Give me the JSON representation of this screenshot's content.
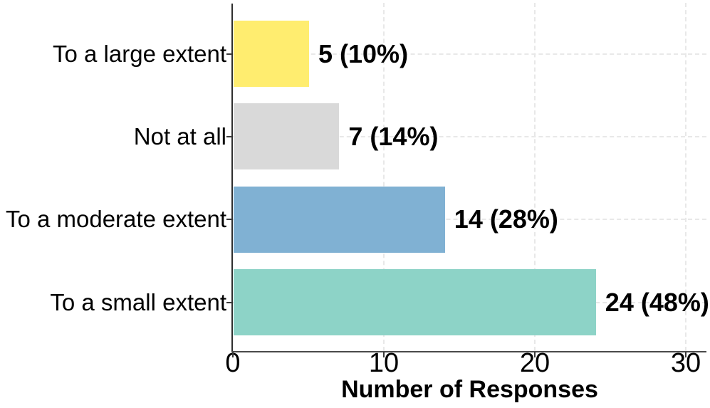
{
  "chart_data": {
    "type": "bar",
    "orientation": "horizontal",
    "title": "",
    "categories": [
      "To a large extent",
      "Not at all",
      "To a moderate extent",
      "To a small extent"
    ],
    "values": [
      5,
      7,
      14,
      24
    ],
    "value_labels": [
      "5 (10%)",
      "7 (14%)",
      "14 (28%)",
      "24 (48%)"
    ],
    "bar_colors": [
      "#FFED6F",
      "#D9D9D9",
      "#80B1D3",
      "#8DD3C7"
    ],
    "xlabel": "Number of Responses",
    "ylabel": "",
    "x_ticks": [
      0,
      10,
      20,
      30
    ],
    "xlim": [
      0,
      31.4
    ],
    "grid": "dashed-major",
    "grid_color": "#e8e8e8",
    "legend": "none",
    "background": "#FFFFFF",
    "text_color": "#000000"
  }
}
